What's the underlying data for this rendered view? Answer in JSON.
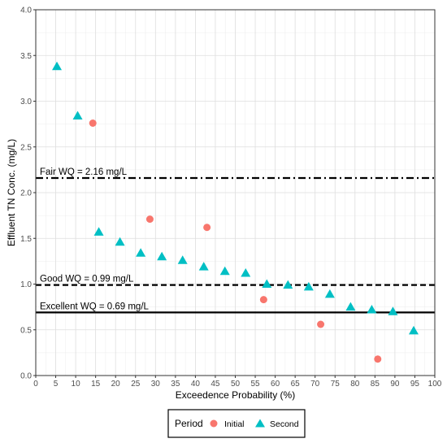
{
  "chart_data": {
    "type": "scatter",
    "xlabel": "Exceedence Probability (%)",
    "ylabel": "Effluent TN Conc. (mg/L)",
    "xlim": [
      0,
      100
    ],
    "ylim": [
      0,
      4
    ],
    "x_ticks": [
      "0",
      "5",
      "10",
      "15",
      "20",
      "25",
      "30",
      "35",
      "40",
      "45",
      "50",
      "55",
      "60",
      "65",
      "70",
      "75",
      "80",
      "85",
      "90",
      "95",
      "100"
    ],
    "y_ticks": [
      "0.0",
      "0.5",
      "1.0",
      "1.5",
      "2.0",
      "2.5",
      "3.0",
      "3.5",
      "4.0"
    ],
    "grid": true,
    "legend": {
      "title": "Period",
      "position": "bottom"
    },
    "series": [
      {
        "name": "Initial",
        "marker": "circle",
        "color": "#F8766D",
        "points": [
          {
            "x": 14.3,
            "y": 2.76
          },
          {
            "x": 28.6,
            "y": 1.71
          },
          {
            "x": 42.9,
            "y": 1.62
          },
          {
            "x": 57.1,
            "y": 0.83
          },
          {
            "x": 71.4,
            "y": 0.56
          },
          {
            "x": 85.7,
            "y": 0.18
          }
        ]
      },
      {
        "name": "Second",
        "marker": "triangle",
        "color": "#00BFC4",
        "points": [
          {
            "x": 5.3,
            "y": 3.38
          },
          {
            "x": 10.5,
            "y": 2.84
          },
          {
            "x": 15.8,
            "y": 1.57
          },
          {
            "x": 21.1,
            "y": 1.46
          },
          {
            "x": 26.3,
            "y": 1.34
          },
          {
            "x": 31.6,
            "y": 1.3
          },
          {
            "x": 36.8,
            "y": 1.26
          },
          {
            "x": 42.1,
            "y": 1.19
          },
          {
            "x": 47.4,
            "y": 1.14
          },
          {
            "x": 52.6,
            "y": 1.12
          },
          {
            "x": 57.9,
            "y": 1.0
          },
          {
            "x": 63.2,
            "y": 0.99
          },
          {
            "x": 68.4,
            "y": 0.97
          },
          {
            "x": 73.7,
            "y": 0.89
          },
          {
            "x": 78.9,
            "y": 0.75
          },
          {
            "x": 84.2,
            "y": 0.72
          },
          {
            "x": 89.5,
            "y": 0.7
          },
          {
            "x": 94.7,
            "y": 0.49
          }
        ]
      }
    ],
    "reference_lines": [
      {
        "label": "Fair WQ = 2.16 mg/L",
        "y": 2.16,
        "style": "dashdot"
      },
      {
        "label": "Good WQ = 0.99 mg/L",
        "y": 0.99,
        "style": "dashed"
      },
      {
        "label": "Excellent WQ = 0.69 mg/L",
        "y": 0.69,
        "style": "solid"
      }
    ]
  }
}
